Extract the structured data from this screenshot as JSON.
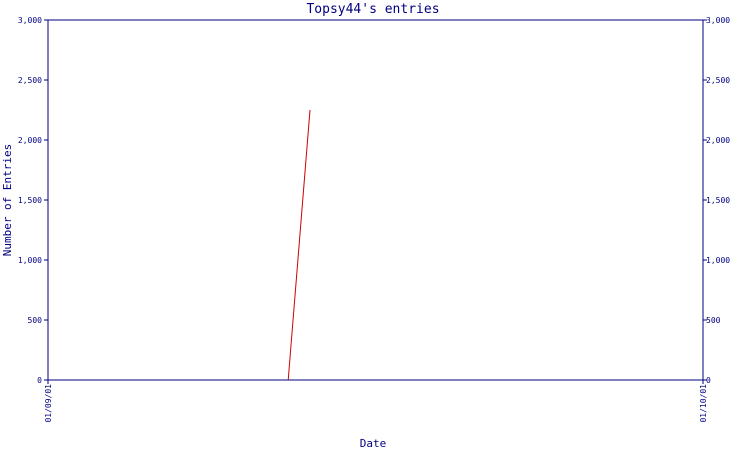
{
  "chart_data": {
    "type": "line",
    "title": "Topsy44's entries",
    "xlabel": "Date",
    "ylabel": "Number of Entries",
    "x_ticks": [
      "01/09/01",
      "01/10/01"
    ],
    "y_ticks": [
      "0",
      "500",
      "1,000",
      "1,500",
      "2,000",
      "2,500",
      "3,000"
    ],
    "y_tick_values": [
      0,
      500,
      1000,
      1500,
      2000,
      2500,
      3000
    ],
    "ylim": [
      0,
      3000
    ],
    "xlim": [
      "2001-09-01",
      "2001-10-01"
    ],
    "series": [
      {
        "color": "#cc0000",
        "points": [
          {
            "x": "2001-09-12",
            "y": 0
          },
          {
            "x": "2001-09-13",
            "y": 2250
          }
        ]
      }
    ],
    "axis_color": "#000080",
    "grid": false,
    "dual_y_axis": true
  }
}
